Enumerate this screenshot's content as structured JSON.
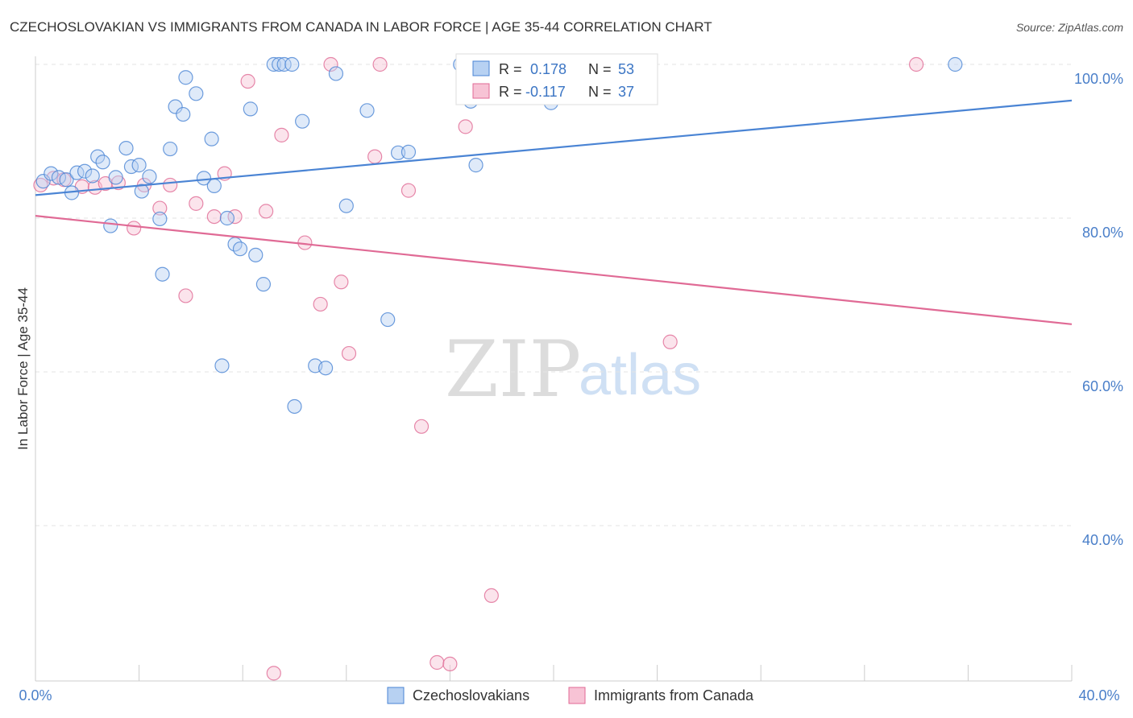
{
  "chart_data": {
    "type": "scatter",
    "title": "CZECHOSLOVAKIAN VS IMMIGRANTS FROM CANADA IN LABOR FORCE | AGE 35-44 CORRELATION CHART",
    "source": "Source: ZipAtlas.com",
    "ylabel": "In Labor Force | Age 35-44",
    "xlim": [
      0,
      40
    ],
    "ylim": [
      20,
      102
    ],
    "x_tick_labels": [
      "0.0%",
      "40.0%"
    ],
    "y_ticks": [
      {
        "value": 100,
        "label": "100.0%"
      },
      {
        "value": 80,
        "label": "80.0%"
      },
      {
        "value": 60,
        "label": "60.0%"
      },
      {
        "value": 40,
        "label": "40.0%"
      }
    ],
    "grid": true,
    "watermark": {
      "zip": "ZIP",
      "atlas": "atlas"
    },
    "stats_box": {
      "rows": [
        {
          "r_label": "R =",
          "r_value": "0.178",
          "n_label": "N =",
          "n_value": "53"
        },
        {
          "r_label": "R =",
          "r_value": "-0.117",
          "n_label": "N =",
          "n_value": "37"
        }
      ]
    },
    "legend_placement": "bottom",
    "series": [
      {
        "name": "Czechoslovakians",
        "color": "#4a84d4",
        "fill": "#b7d1f2",
        "trend": {
          "x": [
            0,
            40
          ],
          "y": [
            83.0,
            95.3
          ]
        },
        "points": [
          {
            "x": 0.3,
            "y": 84.8
          },
          {
            "x": 0.6,
            "y": 85.8
          },
          {
            "x": 0.9,
            "y": 85.3
          },
          {
            "x": 1.2,
            "y": 85.0
          },
          {
            "x": 1.4,
            "y": 83.3
          },
          {
            "x": 1.6,
            "y": 85.9
          },
          {
            "x": 1.9,
            "y": 86.1
          },
          {
            "x": 2.2,
            "y": 85.5
          },
          {
            "x": 2.4,
            "y": 88.0
          },
          {
            "x": 2.6,
            "y": 87.3
          },
          {
            "x": 2.9,
            "y": 79.0
          },
          {
            "x": 3.1,
            "y": 85.3
          },
          {
            "x": 3.5,
            "y": 89.1
          },
          {
            "x": 3.7,
            "y": 86.7
          },
          {
            "x": 4.0,
            "y": 86.9
          },
          {
            "x": 4.1,
            "y": 83.5
          },
          {
            "x": 4.4,
            "y": 85.4
          },
          {
            "x": 4.8,
            "y": 79.9
          },
          {
            "x": 4.9,
            "y": 72.7
          },
          {
            "x": 5.2,
            "y": 89.0
          },
          {
            "x": 5.4,
            "y": 94.5
          },
          {
            "x": 5.7,
            "y": 93.5
          },
          {
            "x": 5.8,
            "y": 98.3
          },
          {
            "x": 6.2,
            "y": 96.2
          },
          {
            "x": 6.5,
            "y": 85.2
          },
          {
            "x": 6.8,
            "y": 90.3
          },
          {
            "x": 6.9,
            "y": 84.2
          },
          {
            "x": 7.2,
            "y": 60.8
          },
          {
            "x": 7.4,
            "y": 80.0
          },
          {
            "x": 7.7,
            "y": 76.6
          },
          {
            "x": 7.9,
            "y": 76.0
          },
          {
            "x": 8.3,
            "y": 94.2
          },
          {
            "x": 8.5,
            "y": 75.2
          },
          {
            "x": 8.8,
            "y": 71.4
          },
          {
            "x": 9.2,
            "y": 100.0
          },
          {
            "x": 9.4,
            "y": 100.0
          },
          {
            "x": 9.6,
            "y": 100.0
          },
          {
            "x": 9.9,
            "y": 100.0
          },
          {
            "x": 10.0,
            "y": 55.5
          },
          {
            "x": 10.3,
            "y": 92.6
          },
          {
            "x": 10.8,
            "y": 60.8
          },
          {
            "x": 11.2,
            "y": 60.5
          },
          {
            "x": 11.6,
            "y": 98.8
          },
          {
            "x": 12.0,
            "y": 81.6
          },
          {
            "x": 12.8,
            "y": 94.0
          },
          {
            "x": 13.6,
            "y": 66.8
          },
          {
            "x": 14.0,
            "y": 88.5
          },
          {
            "x": 14.4,
            "y": 88.6
          },
          {
            "x": 16.4,
            "y": 100.0
          },
          {
            "x": 16.8,
            "y": 95.2
          },
          {
            "x": 17.0,
            "y": 86.9
          },
          {
            "x": 19.9,
            "y": 95.0
          },
          {
            "x": 35.5,
            "y": 100.0
          }
        ]
      },
      {
        "name": "Immigrants from Canada",
        "color": "#e06a95",
        "fill": "#f7c3d5",
        "trend": {
          "x": [
            0,
            40
          ],
          "y": [
            80.3,
            66.2
          ]
        },
        "points": [
          {
            "x": 0.2,
            "y": 84.3
          },
          {
            "x": 0.7,
            "y": 85.2
          },
          {
            "x": 1.1,
            "y": 85.0
          },
          {
            "x": 1.8,
            "y": 84.1
          },
          {
            "x": 2.3,
            "y": 84.0
          },
          {
            "x": 2.7,
            "y": 84.5
          },
          {
            "x": 3.2,
            "y": 84.6
          },
          {
            "x": 3.8,
            "y": 78.7
          },
          {
            "x": 4.2,
            "y": 84.3
          },
          {
            "x": 4.8,
            "y": 81.3
          },
          {
            "x": 5.2,
            "y": 84.3
          },
          {
            "x": 5.8,
            "y": 69.9
          },
          {
            "x": 6.2,
            "y": 81.9
          },
          {
            "x": 6.9,
            "y": 80.2
          },
          {
            "x": 7.3,
            "y": 85.8
          },
          {
            "x": 7.7,
            "y": 80.2
          },
          {
            "x": 8.2,
            "y": 97.8
          },
          {
            "x": 8.9,
            "y": 80.9
          },
          {
            "x": 9.2,
            "y": 20.8
          },
          {
            "x": 9.5,
            "y": 90.8
          },
          {
            "x": 10.4,
            "y": 76.8
          },
          {
            "x": 11.0,
            "y": 68.8
          },
          {
            "x": 11.4,
            "y": 100.0
          },
          {
            "x": 11.8,
            "y": 71.7
          },
          {
            "x": 12.1,
            "y": 62.4
          },
          {
            "x": 13.1,
            "y": 88.0
          },
          {
            "x": 13.3,
            "y": 100.0
          },
          {
            "x": 14.4,
            "y": 83.6
          },
          {
            "x": 14.9,
            "y": 52.9
          },
          {
            "x": 15.5,
            "y": 22.2
          },
          {
            "x": 16.0,
            "y": 22.0
          },
          {
            "x": 16.6,
            "y": 91.9
          },
          {
            "x": 17.6,
            "y": 30.9
          },
          {
            "x": 19.6,
            "y": 100.0
          },
          {
            "x": 20.8,
            "y": 100.0
          },
          {
            "x": 24.5,
            "y": 63.9
          },
          {
            "x": 34.0,
            "y": 100.0
          }
        ]
      }
    ]
  }
}
